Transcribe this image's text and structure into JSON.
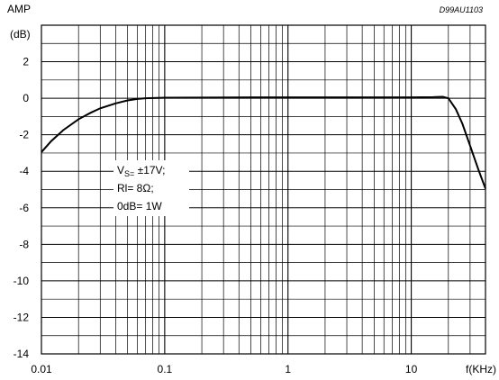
{
  "chart_data": {
    "type": "line",
    "code": "D99AU1103",
    "ylabel_top": "AMP",
    "ylabel_unit": "(dB)",
    "xlabel": "f(KHz)",
    "xscale": "log",
    "xlim": [
      0.01,
      40
    ],
    "ylim": [
      -14,
      4
    ],
    "grid": true,
    "x_ticks": [
      {
        "value": 0.01,
        "label": "0.01"
      },
      {
        "value": 0.1,
        "label": "0.1"
      },
      {
        "value": 1,
        "label": "1"
      },
      {
        "value": 10,
        "label": "10"
      }
    ],
    "y_ticks": [
      {
        "value": 2,
        "label": "2"
      },
      {
        "value": 0,
        "label": "0"
      },
      {
        "value": -2,
        "label": "-2"
      },
      {
        "value": -4,
        "label": "-4"
      },
      {
        "value": -6,
        "label": "-6"
      },
      {
        "value": -8,
        "label": "-8"
      },
      {
        "value": -10,
        "label": "-10"
      },
      {
        "value": -12,
        "label": "-12"
      },
      {
        "value": -14,
        "label": "-14"
      }
    ],
    "annotation": {
      "line1_main": "V",
      "line1_sub": "S=",
      "line1_rest": " ±17V;",
      "line2": "Rl= 8Ω;",
      "line3": "0dB= 1W"
    },
    "series": [
      {
        "x": [
          0.01,
          0.012,
          0.015,
          0.02,
          0.025,
          0.03,
          0.04,
          0.05,
          0.06,
          0.07,
          0.1,
          0.5,
          1,
          5,
          10,
          15,
          18,
          20,
          23,
          26,
          30,
          35,
          40
        ],
        "y": [
          -2.95,
          -2.35,
          -1.75,
          -1.15,
          -0.8,
          -0.55,
          -0.28,
          -0.12,
          -0.04,
          0.0,
          0.03,
          0.05,
          0.05,
          0.05,
          0.05,
          0.06,
          0.08,
          0.0,
          -0.6,
          -1.4,
          -2.6,
          -3.9,
          -4.95
        ]
      }
    ]
  }
}
